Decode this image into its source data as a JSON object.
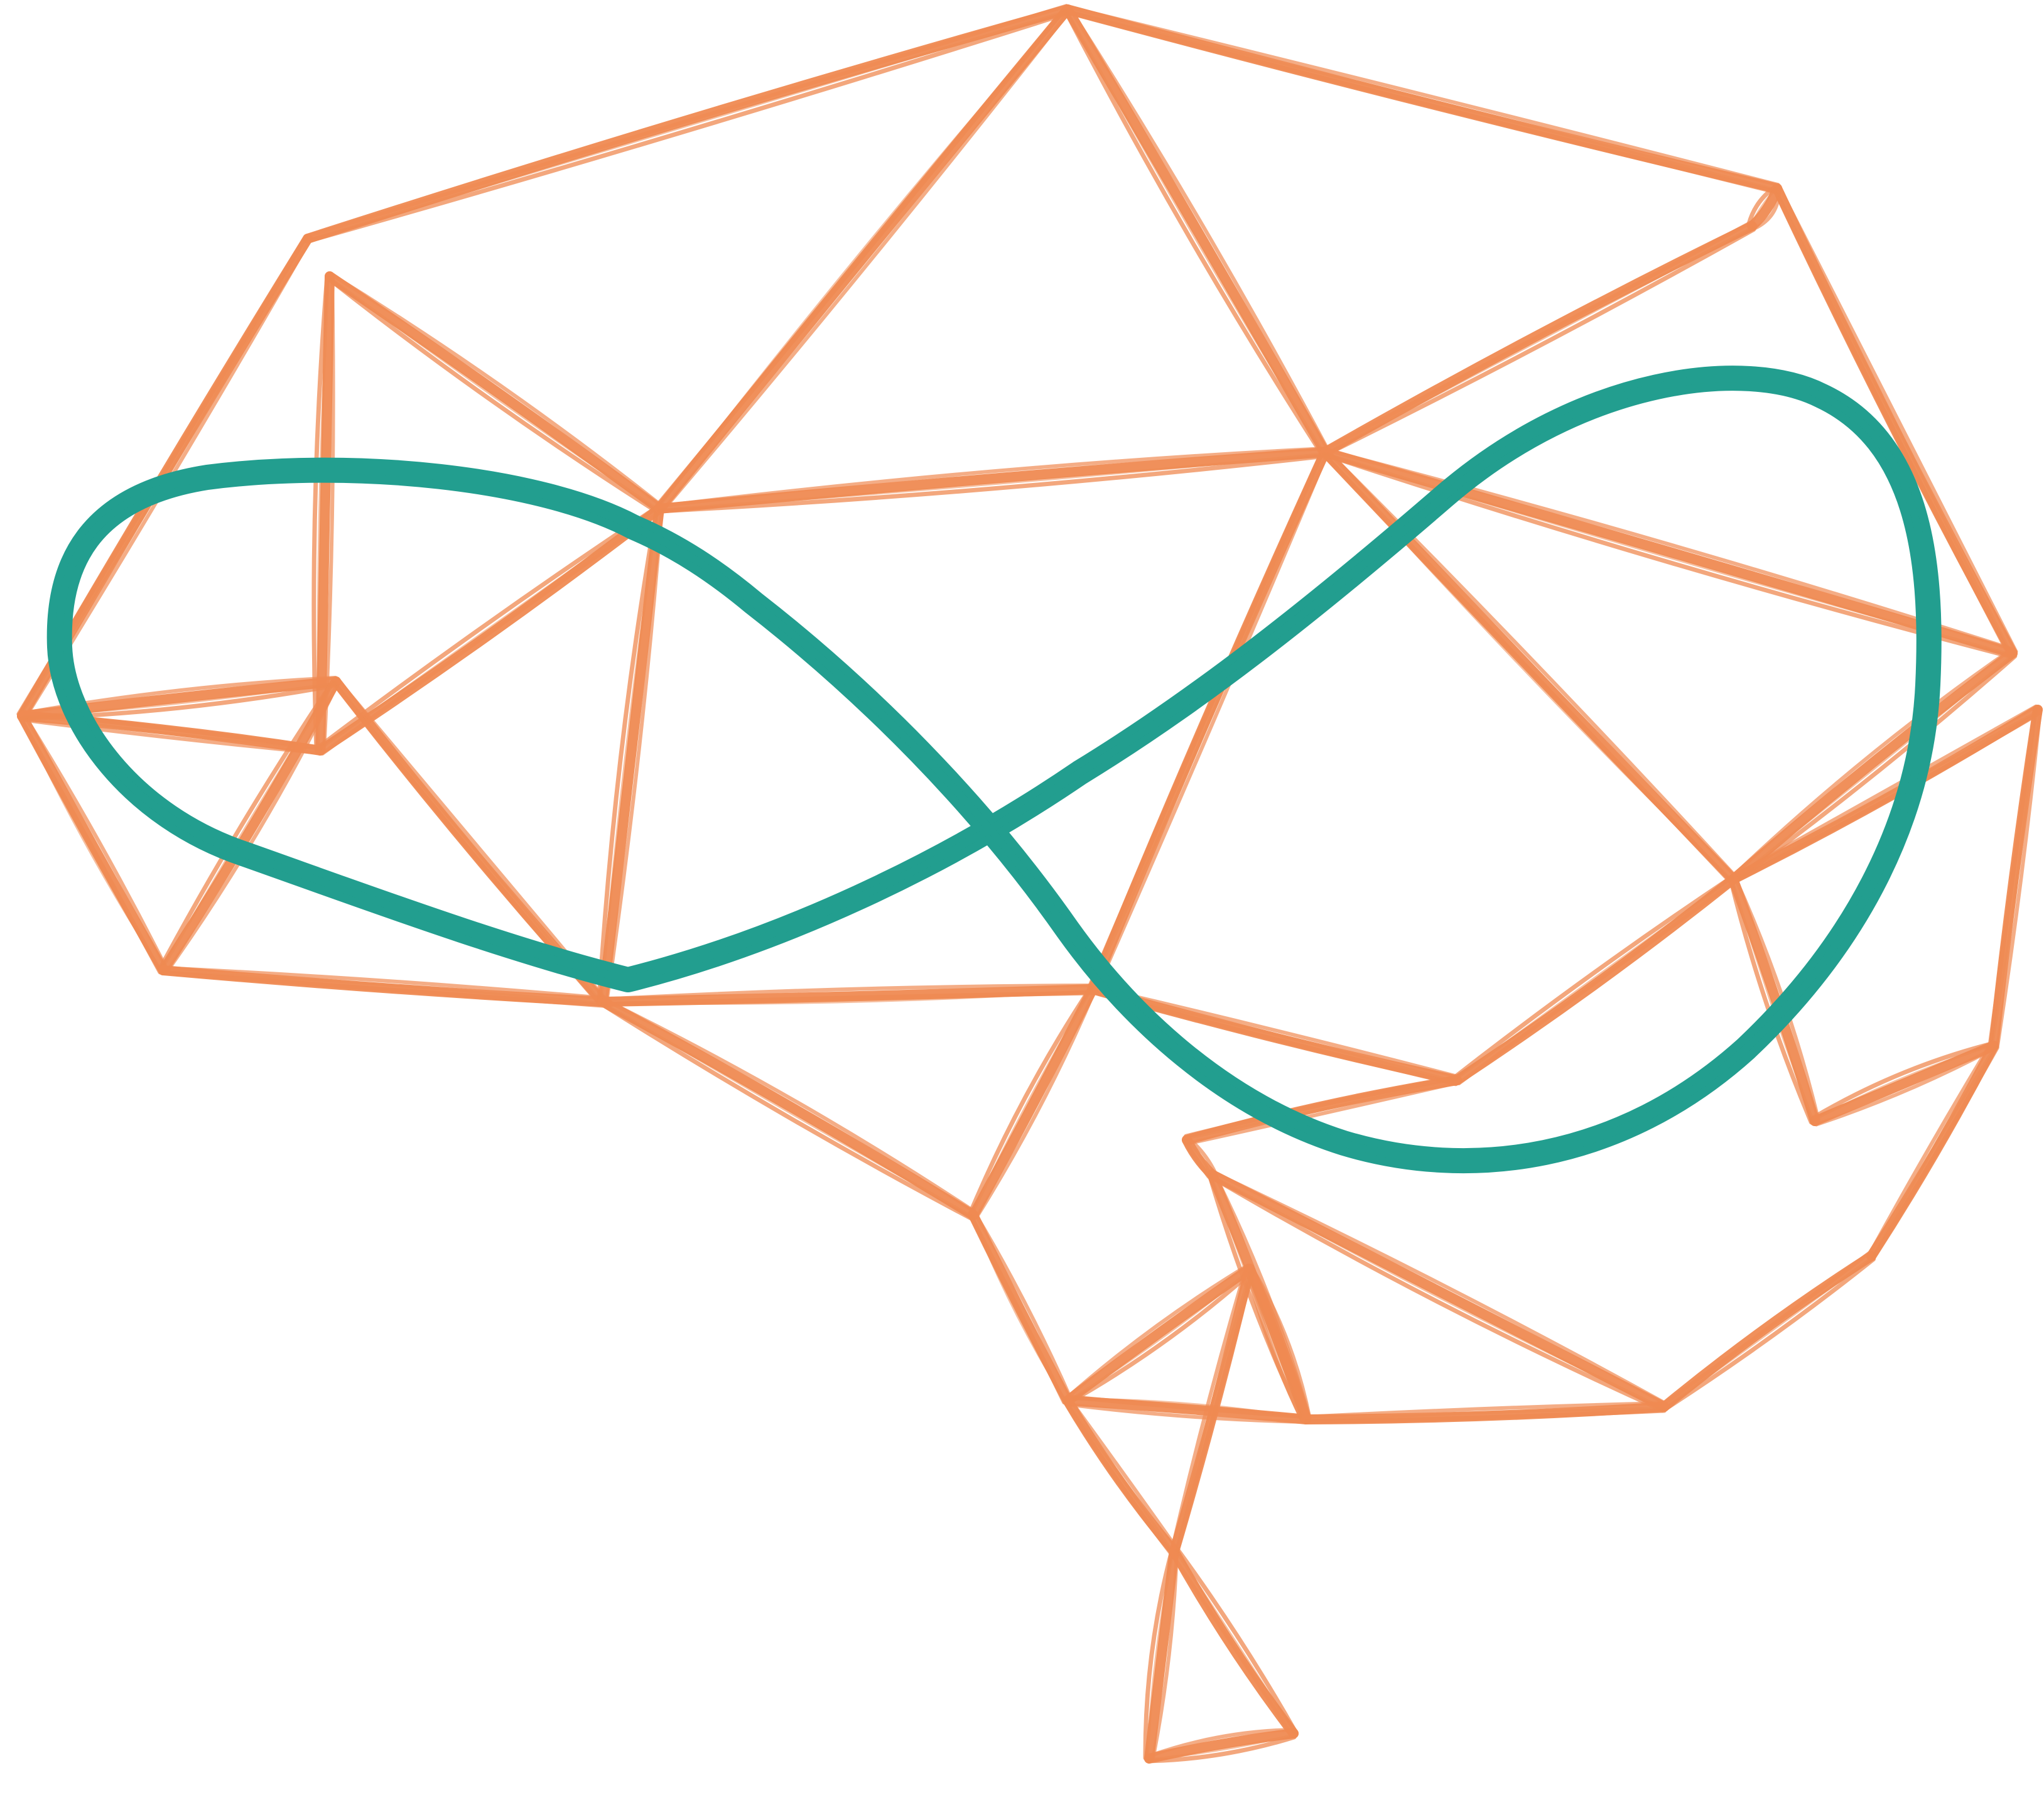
{
  "logo": {
    "name": "brain-infinity-logo",
    "colors": {
      "background": "#ffffff",
      "outline": "#ef8a52",
      "infinity": "#229e8f"
    },
    "icon_names": [
      "brain-outline-icon",
      "infinity-icon"
    ]
  }
}
